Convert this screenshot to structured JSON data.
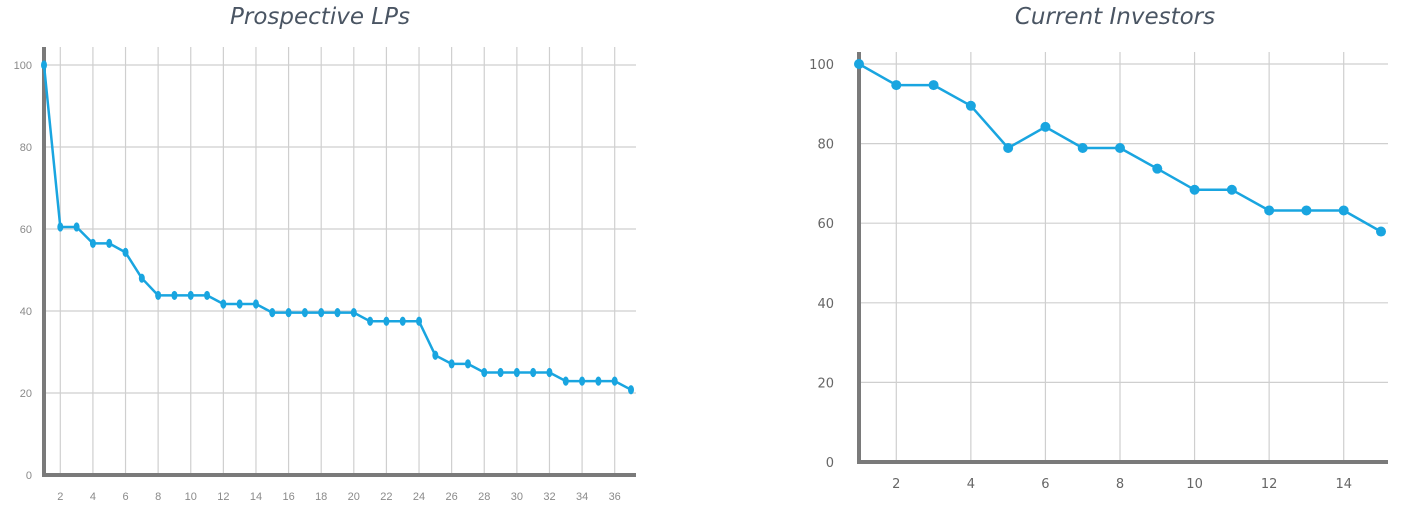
{
  "chart_data": [
    {
      "type": "line",
      "title": "Prospective LPs",
      "xlabel": "",
      "ylabel": "",
      "xlim": [
        1,
        37
      ],
      "ylim": [
        0,
        100
      ],
      "xticks": [
        2,
        4,
        6,
        8,
        10,
        12,
        14,
        16,
        18,
        20,
        22,
        24,
        26,
        28,
        30,
        32,
        34,
        36
      ],
      "yticks": [
        0,
        20,
        40,
        60,
        80,
        100
      ],
      "grid": true,
      "color": "#19a5e0",
      "x": [
        1,
        2,
        3,
        4,
        5,
        6,
        7,
        8,
        9,
        10,
        11,
        12,
        13,
        14,
        15,
        16,
        17,
        18,
        19,
        20,
        21,
        22,
        23,
        24,
        25,
        26,
        27,
        28,
        29,
        30,
        31,
        32,
        33,
        34,
        35,
        36,
        37
      ],
      "values": [
        100,
        60.5,
        60.5,
        56.5,
        56.5,
        54.3,
        48,
        43.8,
        43.8,
        43.8,
        43.8,
        41.7,
        41.7,
        41.7,
        39.6,
        39.6,
        39.6,
        39.6,
        39.6,
        39.6,
        37.5,
        37.5,
        37.5,
        37.5,
        29.2,
        27.1,
        27.1,
        25,
        25,
        25,
        25,
        25,
        22.9,
        22.9,
        22.9,
        22.9,
        20.8
      ]
    },
    {
      "type": "line",
      "title": "Current Investors",
      "xlabel": "",
      "ylabel": "",
      "xlim": [
        1,
        15
      ],
      "ylim": [
        0,
        100
      ],
      "xticks": [
        2,
        4,
        6,
        8,
        10,
        12,
        14
      ],
      "yticks": [
        0,
        20,
        40,
        60,
        80,
        100
      ],
      "grid": true,
      "color": "#19a5e0",
      "x": [
        1,
        2,
        3,
        4,
        5,
        6,
        7,
        8,
        9,
        10,
        11,
        12,
        13,
        14,
        15
      ],
      "values": [
        100,
        94.7,
        94.7,
        89.5,
        78.9,
        84.2,
        78.9,
        78.9,
        73.7,
        68.4,
        68.4,
        63.2,
        63.2,
        63.2,
        57.9
      ]
    }
  ]
}
